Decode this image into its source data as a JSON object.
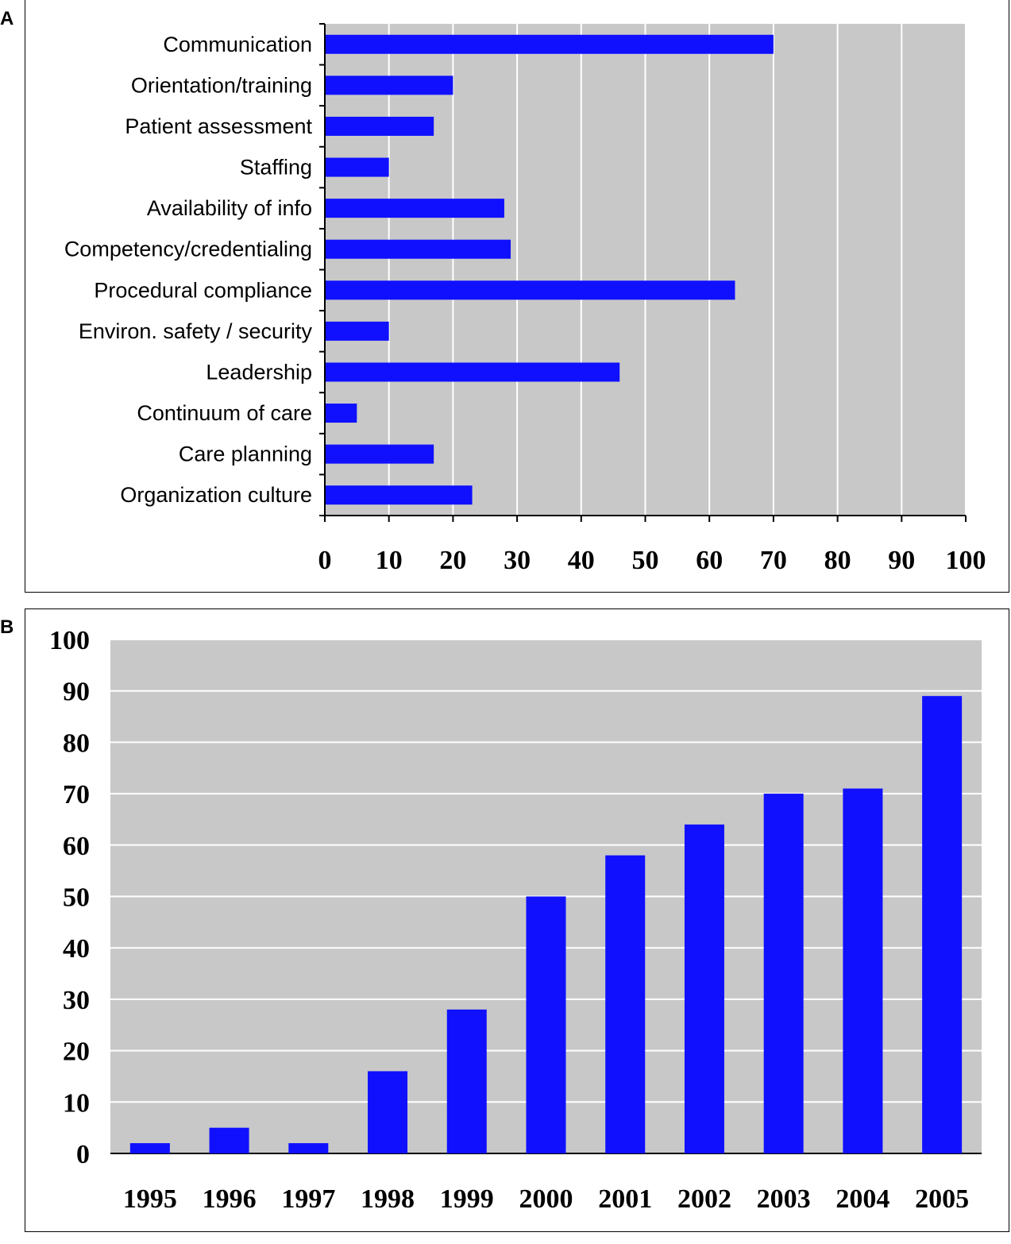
{
  "panels": {
    "a_label": "A",
    "b_label": "B"
  },
  "colors": {
    "bar": "#1010ff",
    "plot_background": "#c8c8c8",
    "gridline": "#ffffff",
    "axis": "#000000"
  },
  "chart_data": [
    {
      "id": "A",
      "type": "bar",
      "orientation": "horizontal",
      "categories": [
        "Communication",
        "Orientation/training",
        "Patient assessment",
        "Staffing",
        "Availability of info",
        "Competency/credentialing",
        "Procedural compliance",
        "Environ. safety / security",
        "Leadership",
        "Continuum of care",
        "Care planning",
        "Organization culture"
      ],
      "values": [
        70,
        20,
        17,
        10,
        28,
        29,
        64,
        10,
        46,
        5,
        17,
        23
      ],
      "xlim": [
        0,
        100
      ],
      "xticks": [
        "0",
        "10",
        "20",
        "30",
        "40",
        "50",
        "60",
        "70",
        "80",
        "90",
        "100"
      ],
      "title": "",
      "xlabel": "",
      "ylabel": "",
      "grid": "vertical"
    },
    {
      "id": "B",
      "type": "bar",
      "orientation": "vertical",
      "categories": [
        "1995",
        "1996",
        "1997",
        "1998",
        "1999",
        "2000",
        "2001",
        "2002",
        "2003",
        "2004",
        "2005"
      ],
      "values": [
        2,
        5,
        2,
        16,
        28,
        50,
        58,
        64,
        70,
        71,
        89
      ],
      "ylim": [
        0,
        100
      ],
      "yticks": [
        "0",
        "10",
        "20",
        "30",
        "40",
        "50",
        "60",
        "70",
        "80",
        "90",
        "100"
      ],
      "title": "",
      "xlabel": "",
      "ylabel": "",
      "grid": "horizontal"
    }
  ]
}
